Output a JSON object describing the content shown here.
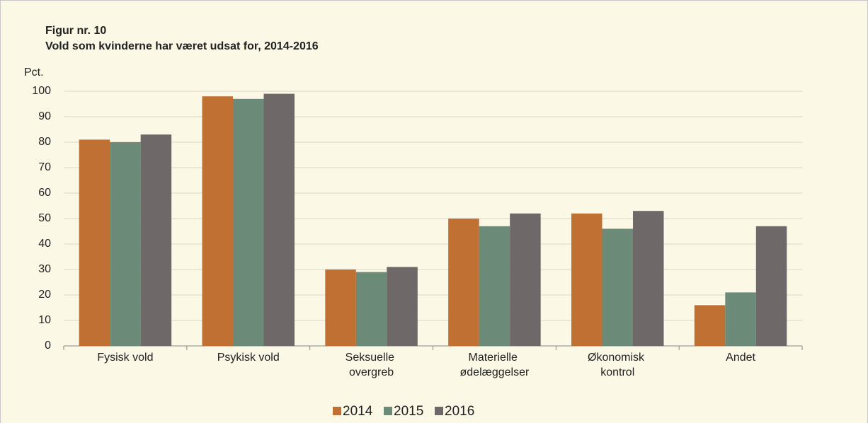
{
  "chart_data": {
    "type": "bar",
    "title": "Figur nr. 10",
    "subtitle": "Vold som kvinderne har været udsat for, 2014-2016",
    "y_label": "Pct.",
    "categories": [
      "Fysisk vold",
      "Psykisk vold",
      "Seksuelle overgreb",
      "Materielle ødelæggelser",
      "Økonomisk kontrol",
      "Andet"
    ],
    "series": [
      {
        "name": "2014",
        "color": "#c07032",
        "values": [
          81,
          98,
          30,
          50,
          52,
          16
        ]
      },
      {
        "name": "2015",
        "color": "#6b8a78",
        "values": [
          80,
          97,
          29,
          47,
          46,
          21
        ]
      },
      {
        "name": "2016",
        "color": "#6e6869",
        "values": [
          83,
          99,
          31,
          52,
          53,
          47
        ]
      }
    ],
    "ylim": [
      0,
      100
    ],
    "yticks": [
      0,
      10,
      20,
      30,
      40,
      50,
      60,
      70,
      80,
      90,
      100
    ],
    "grid": true,
    "legend": "bottom"
  }
}
